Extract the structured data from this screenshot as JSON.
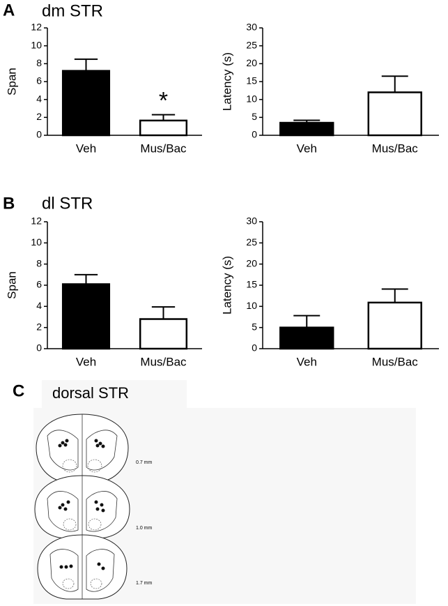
{
  "panels": [
    {
      "letter": "A",
      "title": "dm STR"
    },
    {
      "letter": "B",
      "title": "dl STR"
    },
    {
      "letter": "C",
      "title": "dorsal STR"
    }
  ],
  "sections": [
    "0.7 mm",
    "1.0 mm",
    "1.7 mm"
  ],
  "chart_data": [
    {
      "type": "bar",
      "ylabel": "Span",
      "categories": [
        "Veh",
        "Mus/Bac"
      ],
      "values": [
        7.2,
        1.65
      ],
      "errors": [
        1.3,
        0.65
      ],
      "colors": [
        "#000000",
        "#ffffff"
      ],
      "ylim": [
        0,
        12
      ],
      "yticks": [
        0,
        2,
        4,
        6,
        8,
        10,
        12
      ],
      "annotation": "*"
    },
    {
      "type": "bar",
      "ylabel": "Latency (s)",
      "categories": [
        "Veh",
        "Mus/Bac"
      ],
      "values": [
        3.5,
        12
      ],
      "errors": [
        0.7,
        4.5
      ],
      "colors": [
        "#000000",
        "#ffffff"
      ],
      "ylim": [
        0,
        30
      ],
      "yticks": [
        0,
        5,
        10,
        15,
        20,
        25,
        30
      ]
    },
    {
      "type": "bar",
      "ylabel": "Span",
      "categories": [
        "Veh",
        "Mus/Bac"
      ],
      "values": [
        6.1,
        2.8
      ],
      "errors": [
        0.9,
        1.15
      ],
      "colors": [
        "#000000",
        "#ffffff"
      ],
      "ylim": [
        0,
        12
      ],
      "yticks": [
        0,
        2,
        4,
        6,
        8,
        10,
        12
      ]
    },
    {
      "type": "bar",
      "ylabel": "Latency (s)",
      "categories": [
        "Veh",
        "Mus/Bac"
      ],
      "values": [
        5,
        10.9
      ],
      "errors": [
        2.8,
        3.2
      ],
      "colors": [
        "#000000",
        "#ffffff"
      ],
      "ylim": [
        0,
        30
      ],
      "yticks": [
        0,
        5,
        10,
        15,
        20,
        25,
        30
      ]
    }
  ]
}
